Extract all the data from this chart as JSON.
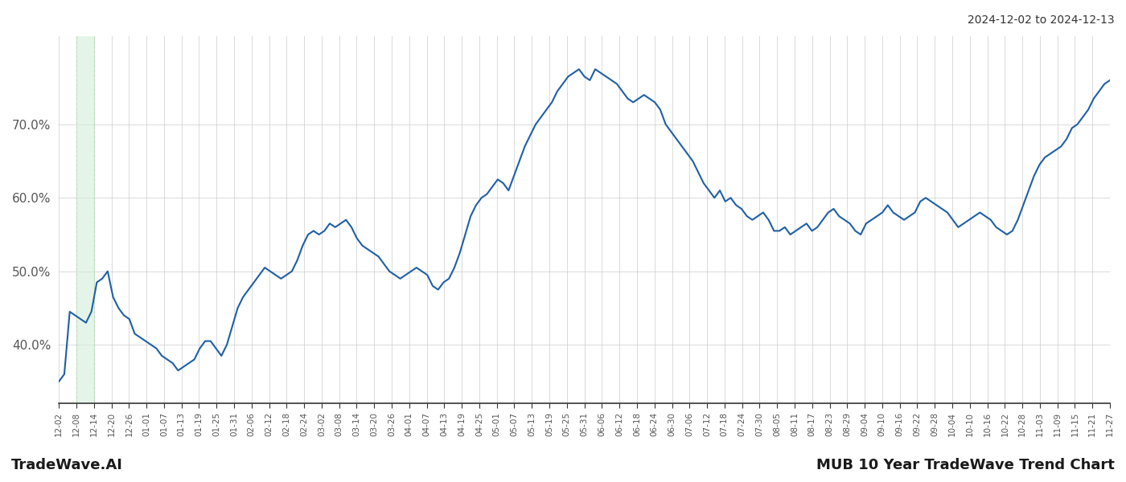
{
  "title_top_right": "2024-12-02 to 2024-12-13",
  "title_bottom_left": "TradeWave.AI",
  "title_bottom_right": "MUB 10 Year TradeWave Trend Chart",
  "line_color": "#1f5fa6",
  "line_width": 1.5,
  "background_color": "#ffffff",
  "grid_color": "#cccccc",
  "highlight_color": "#d4edda",
  "highlight_alpha": 0.6,
  "ylim": [
    32,
    82
  ],
  "yticks": [
    40.0,
    50.0,
    60.0,
    70.0
  ],
  "ytick_labels": [
    "40.0%",
    "50.0%",
    "60.0%",
    "70.0%"
  ],
  "x_labels": [
    "12-02",
    "12-08",
    "12-14",
    "12-20",
    "12-26",
    "01-01",
    "01-07",
    "01-13",
    "01-19",
    "01-25",
    "01-31",
    "02-06",
    "02-12",
    "02-18",
    "02-24",
    "03-02",
    "03-08",
    "03-14",
    "03-20",
    "03-26",
    "04-01",
    "04-07",
    "04-13",
    "04-19",
    "04-25",
    "05-01",
    "05-07",
    "05-13",
    "05-19",
    "05-25",
    "05-31",
    "06-06",
    "06-12",
    "06-18",
    "06-24",
    "06-30",
    "07-06",
    "07-12",
    "07-18",
    "07-24",
    "07-30",
    "08-05",
    "08-11",
    "08-17",
    "08-23",
    "08-29",
    "09-04",
    "09-10",
    "09-16",
    "09-22",
    "09-28",
    "10-04",
    "10-10",
    "10-16",
    "10-22",
    "10-28",
    "11-03",
    "11-09",
    "11-15",
    "11-21",
    "11-27"
  ],
  "highlight_xstart": 1,
  "highlight_xend": 2,
  "curve_y": [
    35.0,
    36.0,
    44.5,
    44.0,
    43.5,
    43.0,
    44.5,
    48.5,
    49.0,
    50.0,
    46.5,
    45.0,
    44.0,
    43.5,
    41.5,
    41.0,
    40.5,
    40.0,
    39.5,
    38.5,
    38.0,
    37.5,
    36.5,
    37.0,
    37.5,
    38.0,
    39.5,
    40.5,
    40.5,
    39.5,
    38.5,
    40.0,
    42.5,
    45.0,
    46.5,
    47.5,
    48.5,
    49.5,
    50.5,
    50.0,
    49.5,
    49.0,
    49.5,
    50.0,
    51.5,
    53.5,
    55.0,
    55.5,
    55.0,
    55.5,
    56.5,
    56.0,
    56.5,
    57.0,
    56.0,
    54.5,
    53.5,
    53.0,
    52.5,
    52.0,
    51.0,
    50.0,
    49.5,
    49.0,
    49.5,
    50.0,
    50.5,
    50.0,
    49.5,
    48.0,
    47.5,
    48.5,
    49.0,
    50.5,
    52.5,
    55.0,
    57.5,
    59.0,
    60.0,
    60.5,
    61.5,
    62.5,
    62.0,
    61.0,
    63.0,
    65.0,
    67.0,
    68.5,
    70.0,
    71.0,
    72.0,
    73.0,
    74.5,
    75.5,
    76.5,
    77.0,
    77.5,
    76.5,
    76.0,
    77.5,
    77.0,
    76.5,
    76.0,
    75.5,
    74.5,
    73.5,
    73.0,
    73.5,
    74.0,
    73.5,
    73.0,
    72.0,
    70.0,
    69.0,
    68.0,
    67.0,
    66.0,
    65.0,
    63.5,
    62.0,
    61.0,
    60.0,
    61.0,
    59.5,
    60.0,
    59.0,
    58.5,
    57.5,
    57.0,
    57.5,
    58.0,
    57.0,
    55.5,
    55.5,
    56.0,
    55.0,
    55.5,
    56.0,
    56.5,
    55.5,
    56.0,
    57.0,
    58.0,
    58.5,
    57.5,
    57.0,
    56.5,
    55.5,
    55.0,
    56.5,
    57.0,
    57.5,
    58.0,
    59.0,
    58.0,
    57.5,
    57.0,
    57.5,
    58.0,
    59.5,
    60.0,
    59.5,
    59.0,
    58.5,
    58.0,
    57.0,
    56.0,
    56.5,
    57.0,
    57.5,
    58.0,
    57.5,
    57.0,
    56.0,
    55.5,
    55.0,
    55.5,
    57.0,
    59.0,
    61.0,
    63.0,
    64.5,
    65.5,
    66.0,
    66.5,
    67.0,
    68.0,
    69.5,
    70.0,
    71.0,
    72.0,
    73.5,
    74.5,
    75.5,
    76.0
  ]
}
